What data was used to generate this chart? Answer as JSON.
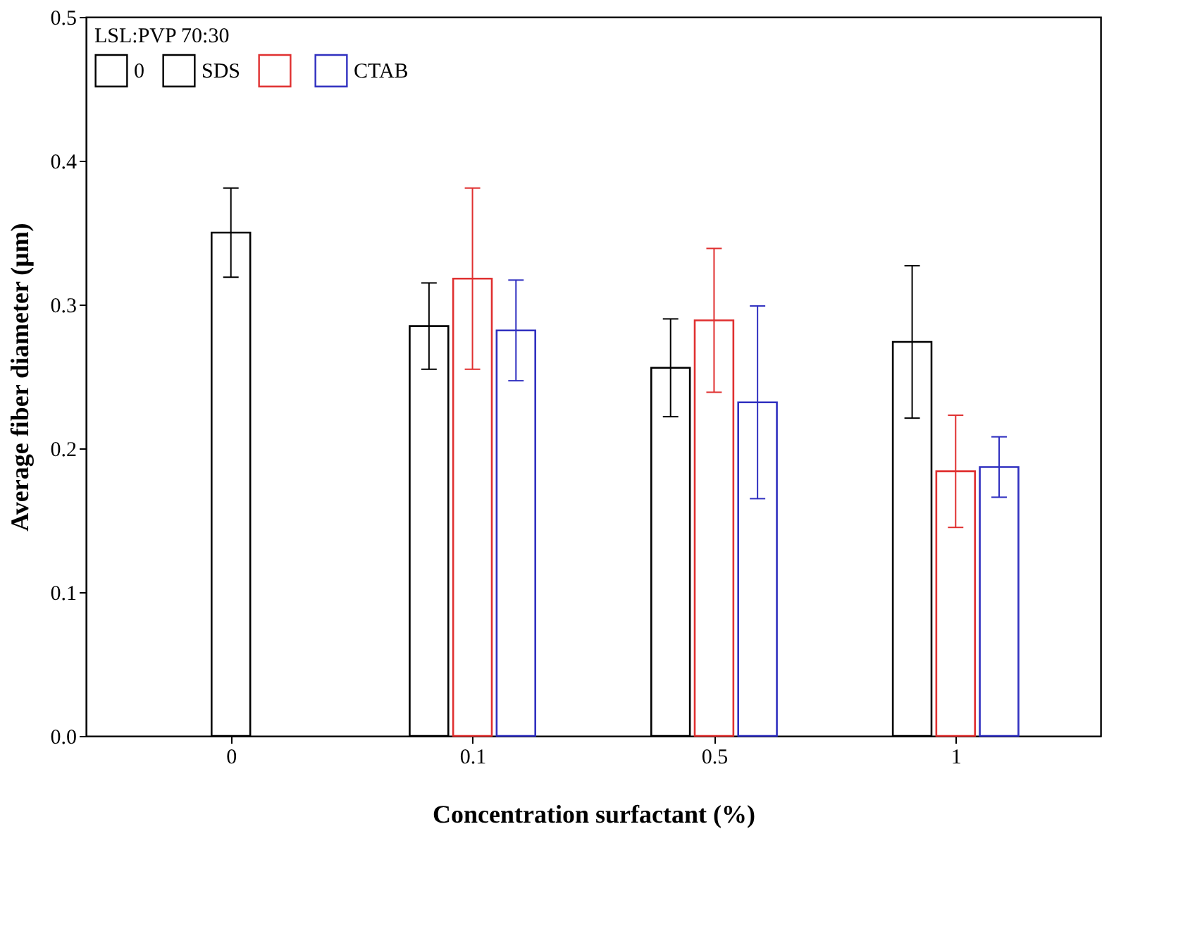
{
  "chart_data": {
    "type": "bar",
    "xlabel": "Concentration surfactant (%)",
    "ylabel": "Average fiber diameter (μm)",
    "legend_title": "LSL:PVP 70:30",
    "legend": "top left",
    "grid": false,
    "categories": [
      "0",
      "0.1",
      "0.5",
      "1"
    ],
    "ylim": [
      0,
      0.5
    ],
    "yticks": [
      {
        "value": 0,
        "label": "0.0"
      },
      0.1,
      0.2,
      0.3,
      0.4,
      0.5
    ],
    "series": [
      {
        "name": "0",
        "color": "#000000",
        "values": [
          0.35,
          null,
          null,
          null
        ],
        "errors": [
          0.031,
          null,
          null,
          null
        ]
      },
      {
        "name": "SDS",
        "color": "#000000",
        "values": [
          null,
          0.285,
          0.256,
          0.274
        ],
        "errors": [
          null,
          0.03,
          0.034,
          0.053
        ]
      },
      {
        "color": "#e03030",
        "values": [
          null,
          0.318,
          0.289,
          0.184
        ],
        "errors": [
          null,
          0.063,
          0.05,
          0.039
        ]
      },
      {
        "name": "CTAB",
        "color": "#3030c0",
        "values": [
          null,
          0.282,
          0.232,
          0.187
        ],
        "errors": [
          null,
          0.035,
          0.067,
          0.021
        ]
      }
    ]
  }
}
